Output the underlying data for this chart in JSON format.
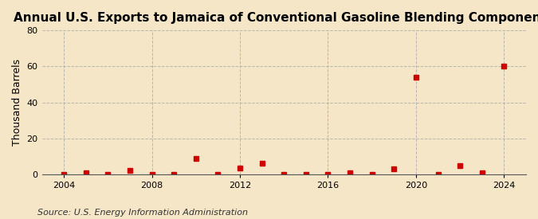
{
  "title": "Annual U.S. Exports to Jamaica of Conventional Gasoline Blending Components",
  "ylabel": "Thousand Barrels",
  "source": "Source: U.S. Energy Information Administration",
  "years": [
    2004,
    2005,
    2006,
    2007,
    2008,
    2009,
    2010,
    2011,
    2012,
    2013,
    2014,
    2015,
    2016,
    2017,
    2018,
    2019,
    2020,
    2021,
    2022,
    2023,
    2024
  ],
  "values": [
    0,
    1,
    0,
    2,
    0,
    0,
    9,
    0,
    3.5,
    6,
    0,
    0,
    0,
    1,
    0,
    3,
    54,
    0,
    5,
    1,
    60
  ],
  "marker_color": "#cc0000",
  "marker": "s",
  "marker_size": 4,
  "background_color": "#f5e6c8",
  "grid_color": "#aaaaaa",
  "xlim": [
    2003,
    2025
  ],
  "ylim": [
    0,
    80
  ],
  "yticks": [
    0,
    20,
    40,
    60,
    80
  ],
  "xticks": [
    2004,
    2008,
    2012,
    2016,
    2020,
    2024
  ],
  "title_fontsize": 11,
  "ylabel_fontsize": 9,
  "source_fontsize": 8
}
